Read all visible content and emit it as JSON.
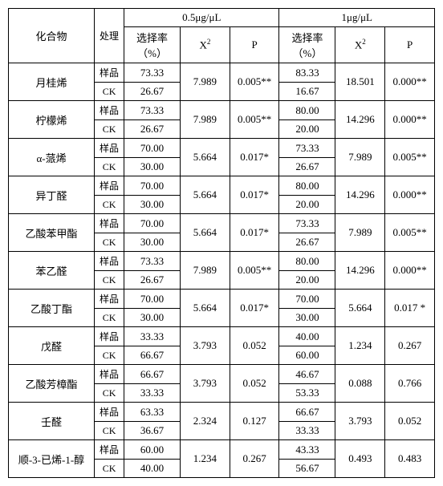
{
  "headers": {
    "compound": "化合物",
    "treatment": "处理",
    "conc1": "0.5μg/μL",
    "conc2": "1μg/μL",
    "rate": "选择率（%）",
    "x2": "X",
    "x2_sup": "2",
    "p": "P"
  },
  "treat_labels": {
    "sample": "样品",
    "ck": "CK"
  },
  "rows": [
    {
      "name": "月桂烯",
      "c1": {
        "sample": "73.33",
        "ck": "26.67",
        "x2": "7.989",
        "p": "0.005**"
      },
      "c2": {
        "sample": "83.33",
        "ck": "16.67",
        "x2": "18.501",
        "p": "0.000**"
      }
    },
    {
      "name": "柠檬烯",
      "c1": {
        "sample": "73.33",
        "ck": "26.67",
        "x2": "7.989",
        "p": "0.005**"
      },
      "c2": {
        "sample": "80.00",
        "ck": "20.00",
        "x2": "14.296",
        "p": "0.000**"
      }
    },
    {
      "name": "α-蒎烯",
      "c1": {
        "sample": "70.00",
        "ck": "30.00",
        "x2": "5.664",
        "p": "0.017*"
      },
      "c2": {
        "sample": "73.33",
        "ck": "26.67",
        "x2": "7.989",
        "p": "0.005**"
      }
    },
    {
      "name": "异丁醛",
      "c1": {
        "sample": "70.00",
        "ck": "30.00",
        "x2": "5.664",
        "p": "0.017*"
      },
      "c2": {
        "sample": "80.00",
        "ck": "20.00",
        "x2": "14.296",
        "p": "0.000**"
      }
    },
    {
      "name": "乙酸苯甲酯",
      "c1": {
        "sample": "70.00",
        "ck": "30.00",
        "x2": "5.664",
        "p": "0.017*"
      },
      "c2": {
        "sample": "73.33",
        "ck": "26.67",
        "x2": "7.989",
        "p": "0.005**"
      }
    },
    {
      "name": "苯乙醛",
      "c1": {
        "sample": "73.33",
        "ck": "26.67",
        "x2": "7.989",
        "p": "0.005**"
      },
      "c2": {
        "sample": "80.00",
        "ck": "20.00",
        "x2": "14.296",
        "p": "0.000**"
      }
    },
    {
      "name": "乙酸丁酯",
      "c1": {
        "sample": "70.00",
        "ck": "30.00",
        "x2": "5.664",
        "p": "0.017*"
      },
      "c2": {
        "sample": "70.00",
        "ck": "30.00",
        "x2": "5.664",
        "p": "0.017 *"
      }
    },
    {
      "name": "戊醛",
      "c1": {
        "sample": "33.33",
        "ck": "66.67",
        "x2": "3.793",
        "p": "0.052"
      },
      "c2": {
        "sample": "40.00",
        "ck": "60.00",
        "x2": "1.234",
        "p": "0.267"
      }
    },
    {
      "name": "乙酸芳樟酯",
      "c1": {
        "sample": "66.67",
        "ck": "33.33",
        "x2": "3.793",
        "p": "0.052"
      },
      "c2": {
        "sample": "46.67",
        "ck": "53.33",
        "x2": "0.088",
        "p": "0.766"
      }
    },
    {
      "name": "壬醛",
      "c1": {
        "sample": "63.33",
        "ck": "36.67",
        "x2": "2.324",
        "p": "0.127"
      },
      "c2": {
        "sample": "66.67",
        "ck": "33.33",
        "x2": "3.793",
        "p": "0.052"
      }
    },
    {
      "name": "顺-3-已烯-1-醇",
      "c1": {
        "sample": "60.00",
        "ck": "40.00",
        "x2": "1.234",
        "p": "0.267"
      },
      "c2": {
        "sample": "43.33",
        "ck": "56.67",
        "x2": "0.493",
        "p": "0.483"
      }
    }
  ]
}
